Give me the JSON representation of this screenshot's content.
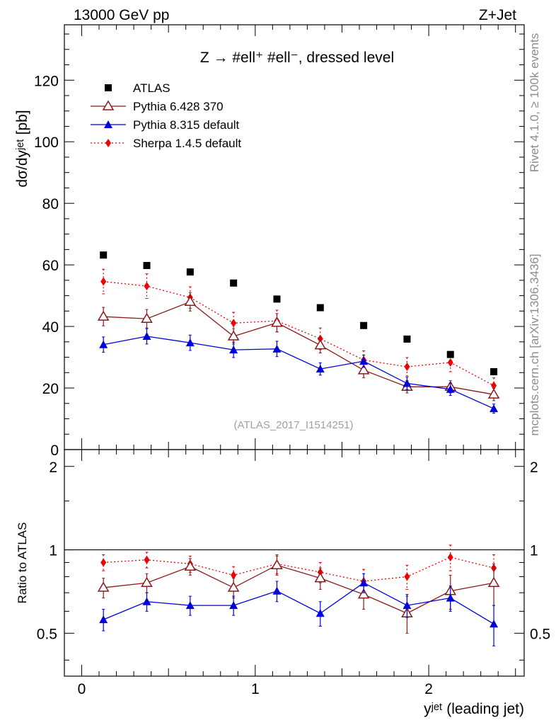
{
  "header": {
    "energy_label": "13000 GeV pp",
    "process_label": "Z+Jet"
  },
  "side_labels": {
    "rivet": "Rivet 4.1.0, ≥ 100k events",
    "mcplots": "mcplots.cern.ch [arXiv:1306.3436]"
  },
  "analysis_id": "(ATLAS_2017_I1514251)",
  "colors": {
    "atlas": "#000000",
    "pythia6": "#8b1a1a",
    "pythia8": "#0000dd",
    "sherpa": "#ee0000"
  },
  "chart_data": [
    {
      "type": "scatter",
      "title": "Z → #ell⁺ #ell⁻, dressed level",
      "xlabel": "yʲᵉᵗ (leading jet)",
      "ylabel": "dσ/dyʲᵉᵗ [pb]",
      "xlim": [
        -0.1,
        2.55
      ],
      "ylim": [
        0,
        138
      ],
      "yticks": [
        0,
        20,
        40,
        60,
        80,
        100,
        120
      ],
      "ytick_labels": [
        "0",
        "20",
        "40",
        "60",
        "80",
        "100",
        "120"
      ],
      "x": [
        0.125,
        0.375,
        0.625,
        0.875,
        1.125,
        1.375,
        1.625,
        1.875,
        2.125,
        2.375
      ],
      "legend": [
        {
          "key": "atlas",
          "label": "ATLAS"
        },
        {
          "key": "pythia6",
          "label": "Pythia 6.428 370"
        },
        {
          "key": "pythia8",
          "label": "Pythia 8.315 default"
        },
        {
          "key": "sherpa",
          "label": "Sherpa 1.4.5 default"
        }
      ],
      "series": [
        {
          "key": "atlas",
          "name": "ATLAS",
          "marker": "square",
          "line": "none",
          "values": [
            63.2,
            59.8,
            57.7,
            54.1,
            48.9,
            46.1,
            40.3,
            35.9,
            30.9,
            25.3
          ],
          "errors": [
            0.4,
            0.4,
            0.4,
            0.4,
            0.4,
            0.4,
            0.4,
            0.4,
            0.4,
            0.4
          ]
        },
        {
          "key": "pythia6",
          "name": "Pythia 6.428 370",
          "marker": "open-triangle",
          "line": "solid",
          "values": [
            43.2,
            42.5,
            48.0,
            36.8,
            41.2,
            33.9,
            25.8,
            20.4,
            20.4,
            17.9
          ],
          "errors": [
            3.0,
            3.0,
            3.0,
            2.5,
            3.0,
            2.5,
            2.5,
            2.0,
            2.0,
            2.0
          ]
        },
        {
          "key": "pythia8",
          "name": "Pythia 8.315 default",
          "marker": "triangle",
          "line": "solid",
          "values": [
            34.1,
            36.8,
            34.7,
            32.4,
            32.7,
            26.2,
            28.7,
            21.5,
            19.6,
            13.3
          ],
          "errors": [
            2.5,
            2.5,
            2.5,
            2.5,
            2.5,
            2.0,
            2.0,
            2.0,
            2.0,
            1.5
          ]
        },
        {
          "key": "sherpa",
          "name": "Sherpa 1.4.5 default",
          "marker": "diamond",
          "line": "dotted",
          "values": [
            54.6,
            53.1,
            49.4,
            41.1,
            41.8,
            36.0,
            29.1,
            26.9,
            28.3,
            20.8
          ],
          "errors": [
            4.0,
            4.0,
            3.5,
            3.5,
            3.5,
            3.5,
            3.0,
            3.0,
            3.0,
            2.5
          ]
        }
      ]
    },
    {
      "type": "scatter",
      "title": "",
      "xlabel": "yʲᵉᵗ (leading jet)",
      "ylabel": "Ratio to ATLAS",
      "xlim": [
        -0.1,
        2.55
      ],
      "ylim": [
        0.35,
        2.3
      ],
      "yscale": "log",
      "reference": 1,
      "xticks": [
        0,
        1,
        2
      ],
      "xtick_labels": [
        "0",
        "1",
        "2"
      ],
      "yticks": [
        0.5,
        1,
        2
      ],
      "ytick_labels": [
        "0.5",
        "1",
        "2"
      ],
      "x": [
        0.125,
        0.375,
        0.625,
        0.875,
        1.125,
        1.375,
        1.625,
        1.875,
        2.125,
        2.375
      ],
      "series": [
        {
          "key": "pythia6",
          "name": "Pythia 6.428 370",
          "values": [
            0.73,
            0.76,
            0.87,
            0.73,
            0.88,
            0.79,
            0.69,
            0.59,
            0.71,
            0.76
          ],
          "errors": [
            0.06,
            0.06,
            0.06,
            0.06,
            0.07,
            0.07,
            0.08,
            0.09,
            0.1,
            0.13
          ]
        },
        {
          "key": "pythia8",
          "name": "Pythia 8.315 default",
          "values": [
            0.56,
            0.65,
            0.63,
            0.63,
            0.71,
            0.59,
            0.76,
            0.63,
            0.67,
            0.54
          ],
          "errors": [
            0.05,
            0.05,
            0.05,
            0.05,
            0.06,
            0.06,
            0.06,
            0.06,
            0.07,
            0.09
          ]
        },
        {
          "key": "sherpa",
          "name": "Sherpa 1.4.5 default",
          "values": [
            0.9,
            0.92,
            0.89,
            0.81,
            0.89,
            0.83,
            0.77,
            0.8,
            0.94,
            0.86
          ],
          "errors": [
            0.06,
            0.06,
            0.06,
            0.06,
            0.07,
            0.07,
            0.08,
            0.08,
            0.1,
            0.1
          ]
        }
      ]
    }
  ]
}
